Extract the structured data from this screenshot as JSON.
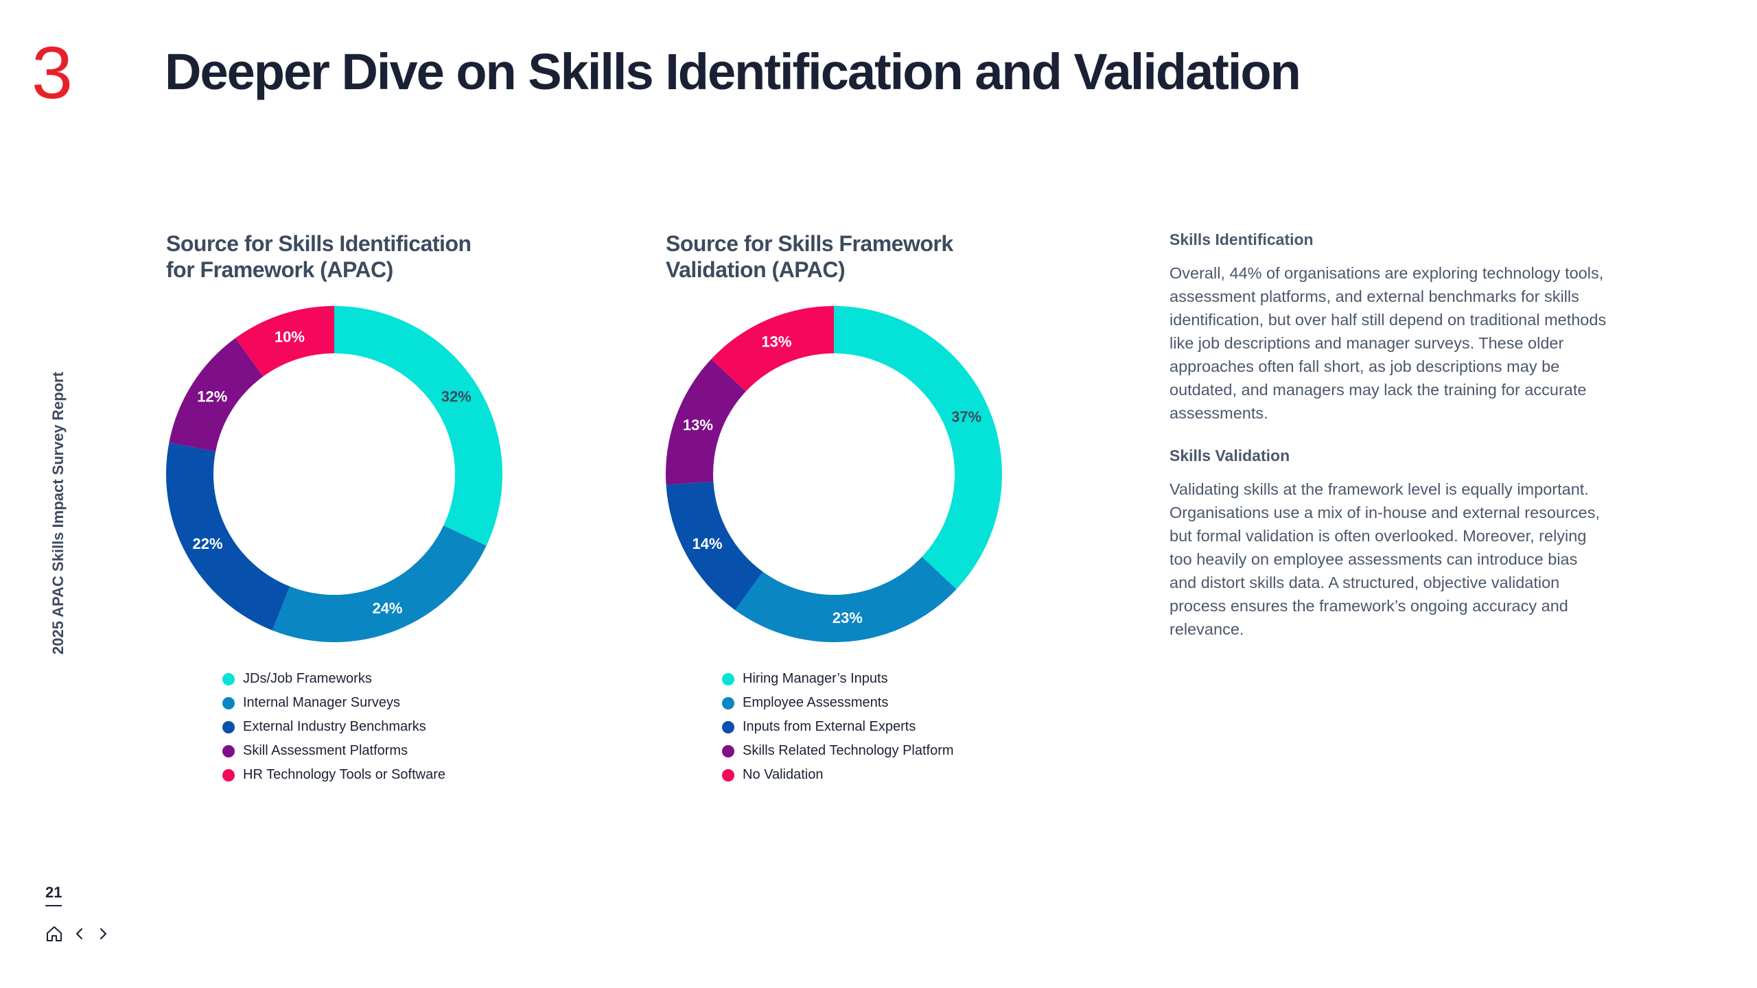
{
  "header": {
    "section_number": "3",
    "title": "Deeper Dive on Skills Identification and Validation"
  },
  "sidebar": {
    "report_name": "2025 APAC Skills Impact Survey Report"
  },
  "footer": {
    "page_number": "21"
  },
  "colors": {
    "accent": "#e8202a",
    "text_dark": "#1b2135",
    "text_muted": "#4a586b"
  },
  "chart_data": [
    {
      "type": "pie",
      "style": "donut",
      "title_lines": [
        "Source for Skills Identification",
        "for Framework (APAC)"
      ],
      "categories": [
        "JDs/Job Frameworks",
        "Internal Manager Surveys",
        "External Industry Benchmarks",
        "Skill Assessment Platforms",
        "HR Technology Tools or Software"
      ],
      "values": [
        32,
        24,
        22,
        12,
        10
      ],
      "labels": [
        "32%",
        "24%",
        "22%",
        "12%",
        "10%"
      ],
      "colors": [
        "#05e2d8",
        "#0a86c2",
        "#0751ac",
        "#7e0f88",
        "#f5075b"
      ],
      "label_colors": [
        "#3d4b5f",
        "#ffffff",
        "#ffffff",
        "#ffffff",
        "#ffffff"
      ],
      "legend_position": "bottom"
    },
    {
      "type": "pie",
      "style": "donut",
      "title_lines": [
        "Source for Skills Framework",
        "Validation (APAC)"
      ],
      "categories": [
        "Hiring Manager’s Inputs",
        "Employee Assessments",
        "Inputs from External Experts",
        "Skills Related Technology Platform",
        "No Validation"
      ],
      "values": [
        37,
        23,
        14,
        13,
        13
      ],
      "labels": [
        "37%",
        "23%",
        "14%",
        "13%",
        "13%"
      ],
      "colors": [
        "#05e2d8",
        "#0a86c2",
        "#0751ac",
        "#7e0f88",
        "#f5075b"
      ],
      "label_colors": [
        "#3d4b5f",
        "#ffffff",
        "#ffffff",
        "#ffffff",
        "#ffffff"
      ],
      "legend_position": "bottom"
    }
  ],
  "text_panel": {
    "identification_heading": "Skills Identification",
    "identification_body": "Overall, 44% of organisations are exploring technology tools, assessment platforms, and external benchmarks for skills identification, but over half still depend on traditional methods like job descriptions and manager surveys. These older approaches often fall short, as job descriptions may be outdated, and managers may lack the training for accurate assessments.",
    "validation_heading": "Skills Validation",
    "validation_body": "Validating skills at the framework level is equally important. Organisations use a mix of in-house and external resources, but formal validation is often overlooked. Moreover, relying too heavily on employee assessments can introduce bias and distort skills data. A structured, objective validation process ensures the framework’s ongoing accuracy and relevance."
  }
}
